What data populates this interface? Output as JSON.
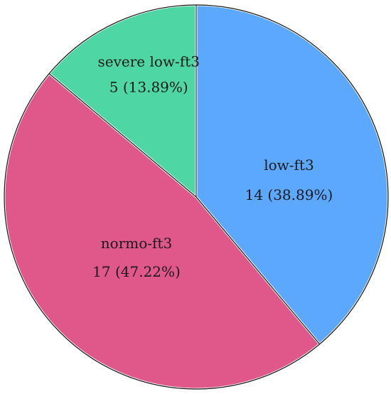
{
  "chart_data": {
    "type": "pie",
    "slices": [
      {
        "name": "low-ft3",
        "value": 14,
        "percent_label": "14 (38.89%)",
        "color": "#5ca8ff"
      },
      {
        "name": "normo-ft3",
        "value": 17,
        "percent_label": "17 (47.22%)",
        "color": "#e0578a"
      },
      {
        "name": "severe low-ft3",
        "value": 5,
        "percent_label": "5 (13.89%)",
        "color": "#4fd6a5"
      }
    ],
    "start_angle_deg": 0,
    "direction": "clockwise",
    "slice_border_color": "#ffffff",
    "outline_color": "#111111",
    "legend": "none"
  }
}
